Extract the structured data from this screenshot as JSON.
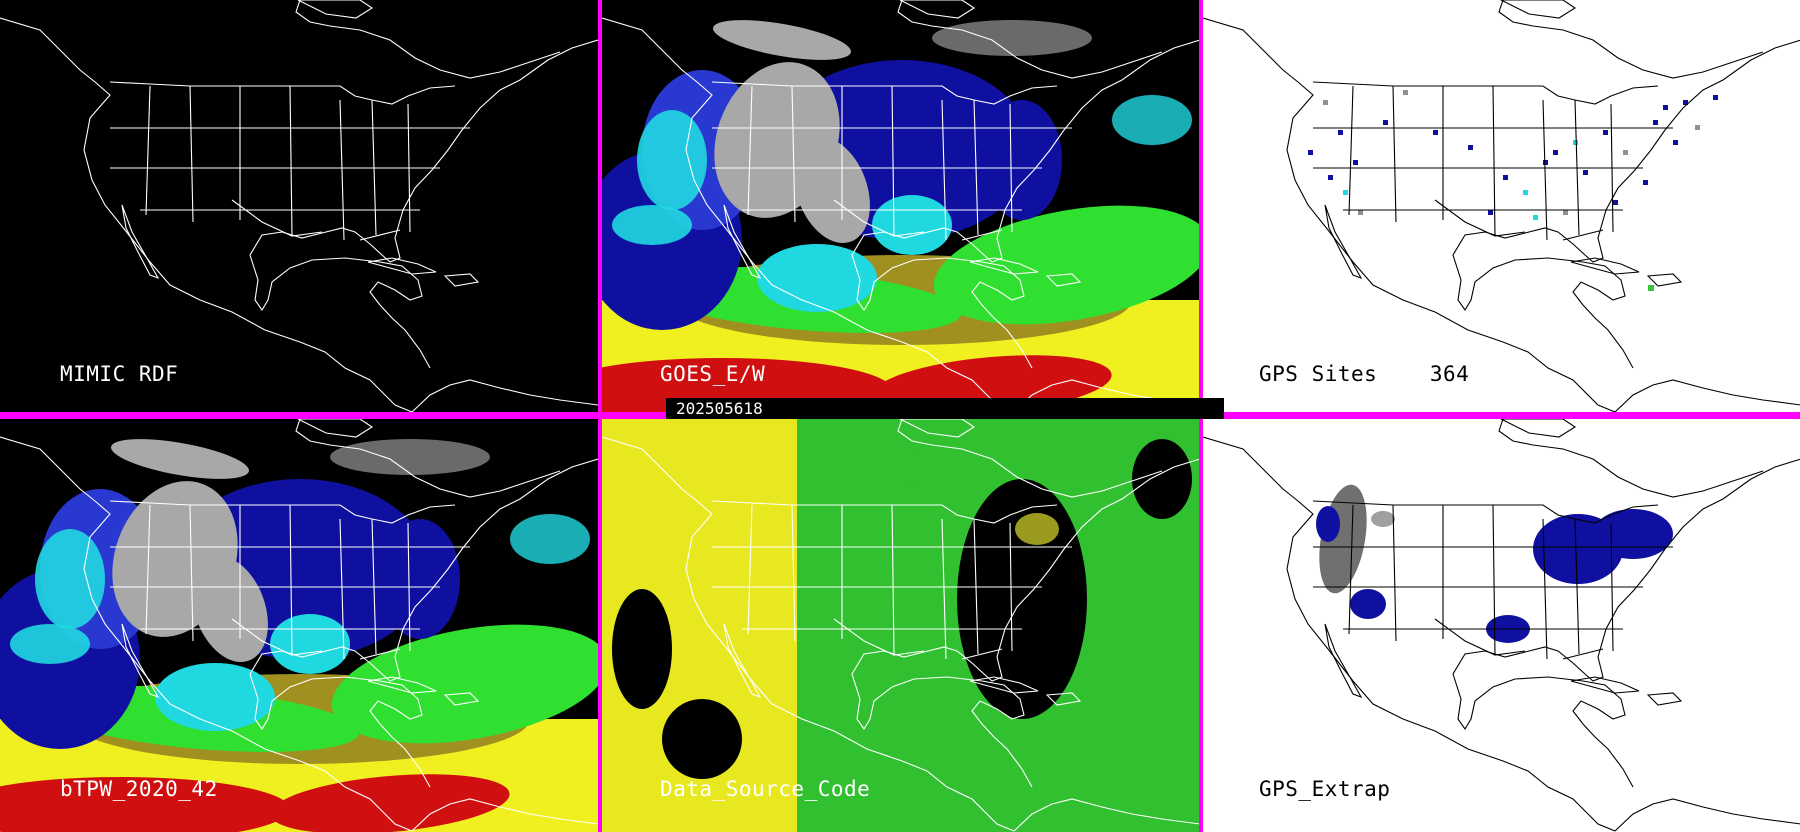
{
  "title": "",
  "panels": [
    {
      "id": "mimic-rdf",
      "label": "MIMIC RDF"
    },
    {
      "id": "goes-ew",
      "label": "GOES_E/W"
    },
    {
      "id": "gps-sites",
      "label": "GPS Sites    364"
    },
    {
      "id": "btpw",
      "label": "bTPW_2020_42"
    },
    {
      "id": "data-source",
      "label": "Data_Source_Code"
    },
    {
      "id": "gps-extrap",
      "label": "GPS_Extrap"
    }
  ],
  "timestamp": "202505618",
  "colors": {
    "divider": "#ff00ff",
    "dark_background": "#000000",
    "light_background": "#ffffff",
    "coastline_dark": "#ffffff",
    "coastline_light": "#000000",
    "tpw_gray": "#a8a8a8",
    "tpw_darkblue": "#1010a0",
    "tpw_blue": "#2838d0",
    "tpw_cyan": "#20d8e0",
    "tpw_green": "#30e030",
    "tpw_olive": "#a09020",
    "tpw_yellow": "#f0f020",
    "tpw_red": "#d01010",
    "source_yellow": "#e8e820",
    "source_green": "#30c030"
  }
}
